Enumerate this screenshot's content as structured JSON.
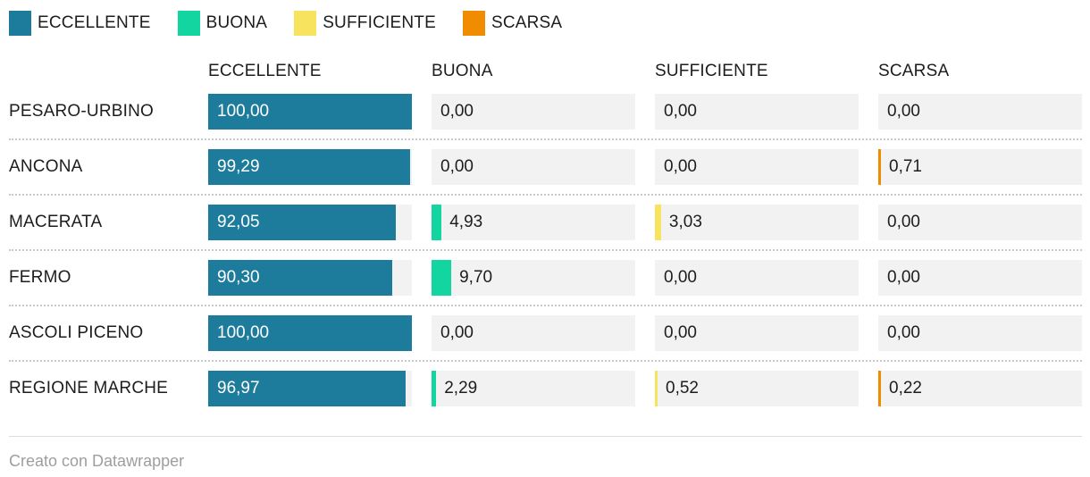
{
  "colors": {
    "eccellente": "#1d7c9b",
    "buona": "#12d5a0",
    "sufficiente": "#f8e35e",
    "scarsa": "#f18b00",
    "cell_background": "#f2f2f2",
    "text": "#1d1d1d",
    "footer_text": "#9e9e9e",
    "row_separator": "#c9c9c9",
    "footer_line": "#dddddd"
  },
  "legend": [
    {
      "label": "ECCELLENTE",
      "color_key": "eccellente"
    },
    {
      "label": "BUONA",
      "color_key": "buona"
    },
    {
      "label": "SUFFICIENTE",
      "color_key": "sufficiente"
    },
    {
      "label": "SCARSA",
      "color_key": "scarsa"
    }
  ],
  "footer": {
    "credit": "Creato con Datawrapper"
  },
  "chart_data": {
    "type": "bar",
    "subtype": "table-with-bars",
    "categories": [
      "PESARO-URBINO",
      "ANCONA",
      "MACERATA",
      "FERMO",
      "ASCOLI PICENO",
      "REGIONE MARCHE"
    ],
    "columns": [
      "ECCELLENTE",
      "BUONA",
      "SUFFICIENTE",
      "SCARSA"
    ],
    "series": [
      {
        "name": "ECCELLENTE",
        "color_key": "eccellente",
        "values": [
          100.0,
          99.29,
          92.05,
          90.3,
          100.0,
          96.97
        ]
      },
      {
        "name": "BUONA",
        "color_key": "buona",
        "values": [
          0.0,
          0.0,
          4.93,
          9.7,
          0.0,
          2.29
        ]
      },
      {
        "name": "SUFFICIENTE",
        "color_key": "sufficiente",
        "values": [
          0.0,
          0.0,
          3.03,
          0.0,
          0.0,
          0.52
        ]
      },
      {
        "name": "SCARSA",
        "color_key": "scarsa",
        "values": [
          0.0,
          0.71,
          0.0,
          0.0,
          0.0,
          0.22
        ]
      }
    ],
    "display_values": [
      [
        "100,00",
        "0,00",
        "0,00",
        "0,00"
      ],
      [
        "99,29",
        "0,00",
        "0,00",
        "0,71"
      ],
      [
        "92,05",
        "4,93",
        "3,03",
        "0,00"
      ],
      [
        "90,30",
        "9,70",
        "0,00",
        "0,00"
      ],
      [
        "100,00",
        "0,00",
        "0,00",
        "0,00"
      ],
      [
        "96,97",
        "2,29",
        "0,52",
        "0,22"
      ]
    ],
    "scale_min": 0,
    "scale_max": 100,
    "grid": false,
    "legend_position": "top",
    "title": "",
    "xlabel": "",
    "ylabel": ""
  }
}
